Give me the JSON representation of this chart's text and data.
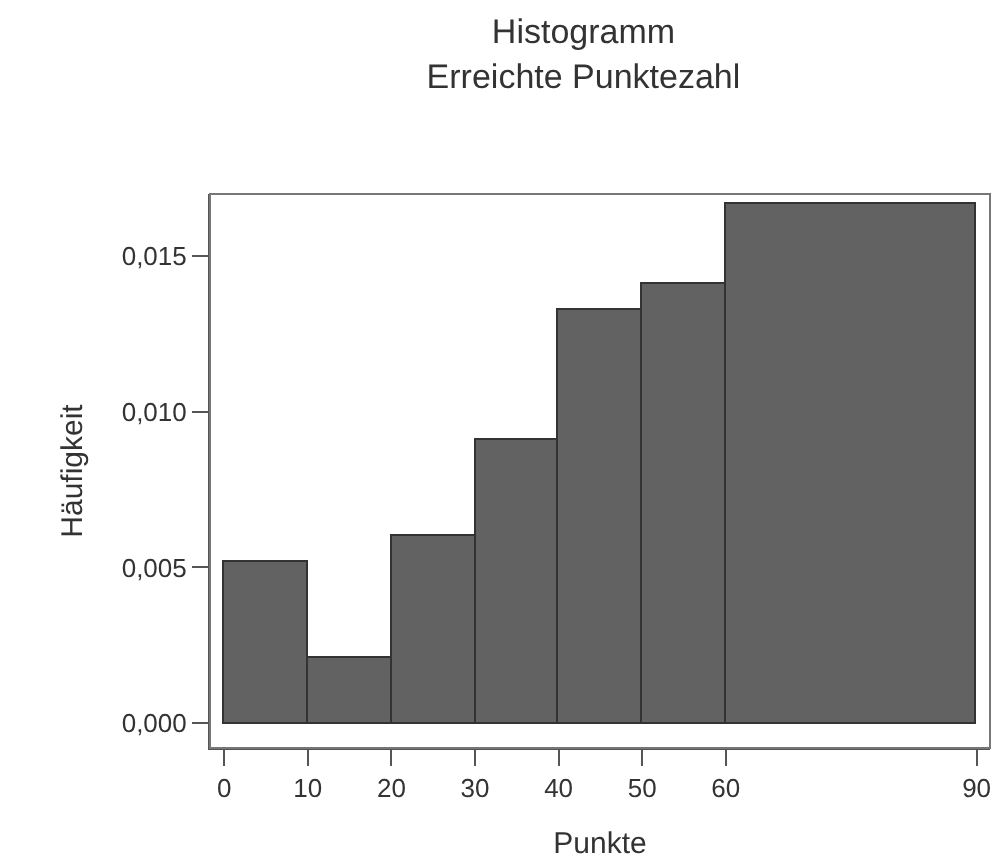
{
  "chart_data": {
    "type": "histogram",
    "title": "Histogramm",
    "subtitle": "Erreichte Punktezahl",
    "xlabel": "Punkte",
    "ylabel": "Häufigkeit",
    "bins": [
      0,
      10,
      20,
      30,
      40,
      50,
      60,
      90
    ],
    "values": [
      0.0052,
      0.0021,
      0.006,
      0.0091,
      0.0133,
      0.0141,
      0.0167
    ],
    "color": "#626262",
    "xlim": [
      -1.7,
      91.6
    ],
    "ylim": [
      -0.0008,
      0.017
    ],
    "xticks": [
      0,
      10,
      20,
      30,
      40,
      50,
      60,
      90
    ],
    "yticks": [
      {
        "value": 0,
        "label": "0,000"
      },
      {
        "value": 0.005,
        "label": "0,005"
      },
      {
        "value": 0.01,
        "label": "0,010"
      },
      {
        "value": 0.015,
        "label": "0,015"
      }
    ]
  }
}
